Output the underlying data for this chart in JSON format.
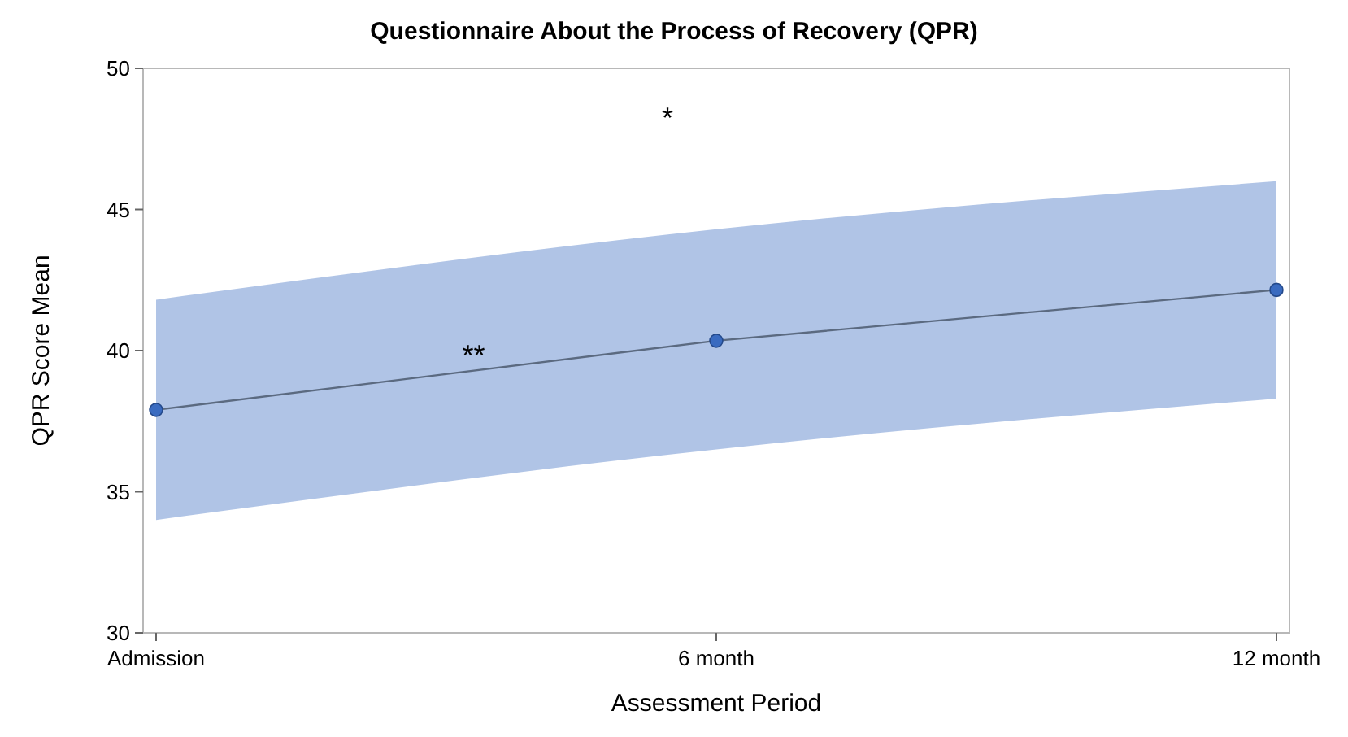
{
  "chart_data": {
    "type": "line",
    "title": "Questionnaire About the Process of Recovery (QPR)",
    "xlabel": "Assessment Period",
    "ylabel": "QPR Score Mean",
    "categories": [
      "Admission",
      "6 month",
      "12 month"
    ],
    "series": [
      {
        "color": "#3a6bc0",
        "values": [
          37.9,
          40.35,
          42.15
        ],
        "lower": [
          34.0,
          36.5,
          38.3
        ],
        "upper": [
          41.8,
          44.3,
          46.0
        ]
      }
    ],
    "ylim": [
      30,
      50
    ],
    "yticks": [
      30,
      35,
      40,
      45,
      50
    ],
    "marker": "circle",
    "grid": false,
    "annotations": [
      "*",
      "**"
    ]
  }
}
